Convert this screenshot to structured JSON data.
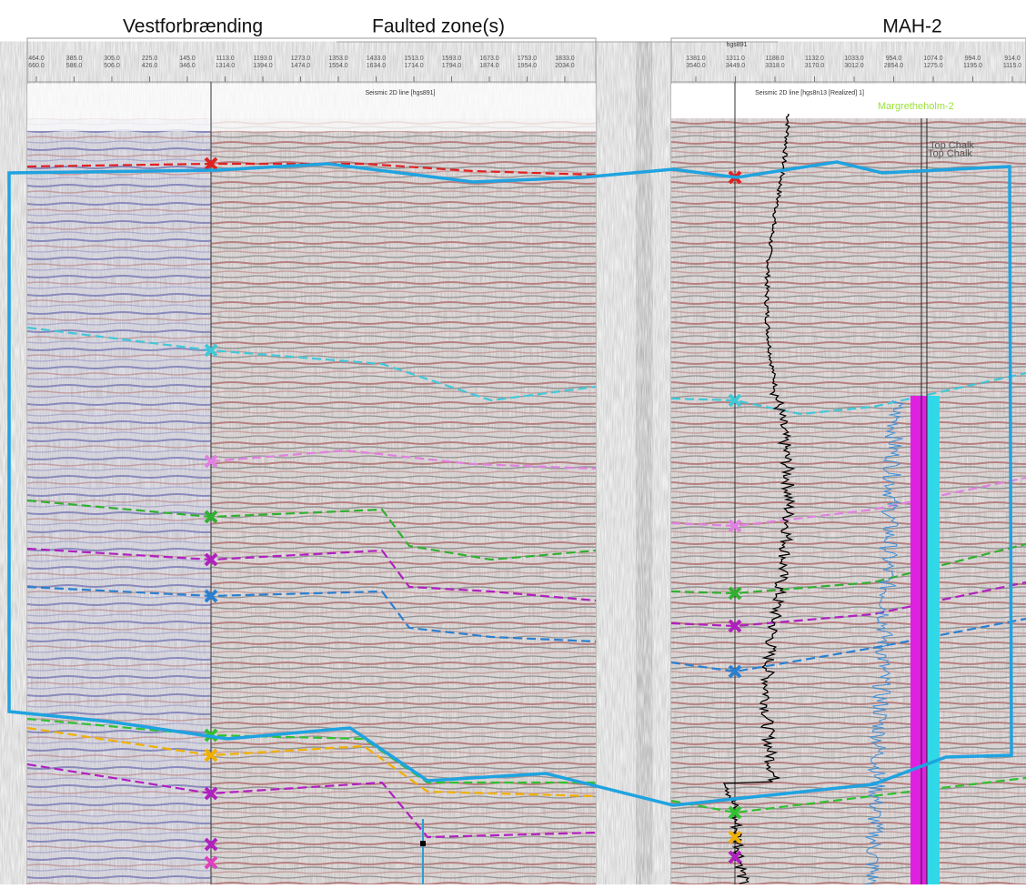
{
  "header": {
    "left_title": "Vestforbrænding",
    "center_title": "Faulted zone(s)",
    "right_title": "MAH-2"
  },
  "left_panel": {
    "label": "Seismic 2D line [hgs891]",
    "ticks": [
      [
        "464.0",
        "660.0"
      ],
      [
        "385.0",
        "586.0"
      ],
      [
        "305.0",
        "506.0"
      ],
      [
        "225.0",
        "426.0"
      ],
      [
        "145.0",
        "346.0"
      ],
      [
        "1113.0",
        "1314.0"
      ],
      [
        "1193.0",
        "1394.0"
      ],
      [
        "1273.0",
        "1474.0"
      ],
      [
        "1353.0",
        "1554.0"
      ],
      [
        "1433.0",
        "1634.0"
      ],
      [
        "1513.0",
        "1714.0"
      ],
      [
        "1593.0",
        "1794.0"
      ],
      [
        "1673.0",
        "1874.0"
      ],
      [
        "1753.0",
        "1954.0"
      ],
      [
        "1833.0",
        "2034.0"
      ]
    ]
  },
  "right_panel": {
    "label": "Seismic 2D line [hgs8n13 [Realized] 1]",
    "line_tag": "hgs891",
    "ticks": [
      [
        "1381.0",
        "3540.0"
      ],
      [
        "1311.0",
        "3449.0"
      ],
      [
        "1188.0",
        "3318.0"
      ],
      [
        "1132.0",
        "3170.0"
      ],
      [
        "1033.0",
        "3012.0"
      ],
      [
        "954.0",
        "2854.0"
      ],
      [
        "1074.0",
        "1275.0"
      ],
      [
        "994.0",
        "1195.0"
      ],
      [
        "914.0",
        "1115.0"
      ]
    ],
    "well_name": "Margretheholm-2",
    "markers": [
      "Top Chalk",
      "Top Chalk"
    ]
  }
}
